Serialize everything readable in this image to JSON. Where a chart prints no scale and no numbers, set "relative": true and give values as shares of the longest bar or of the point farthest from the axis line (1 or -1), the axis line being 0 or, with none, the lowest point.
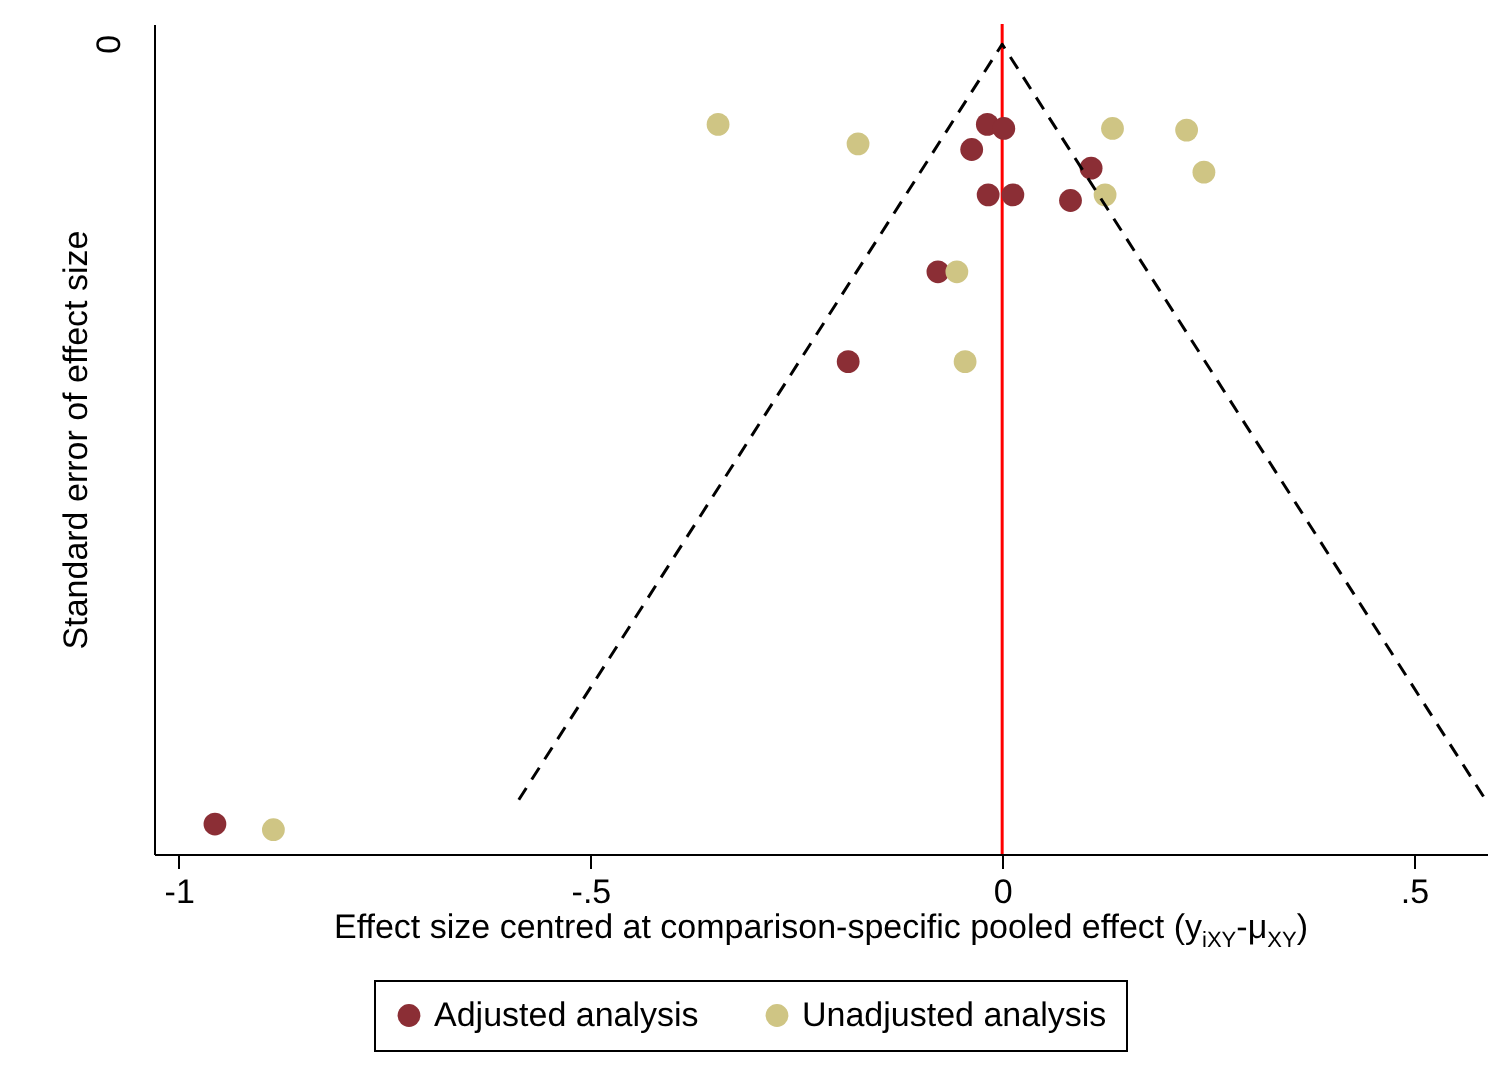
{
  "chart_data": {
    "type": "scatter",
    "relative": true,
    "xlabel": "Effect size centred at comparison-specific pooled effect (y$_{iXY}$-μ$_{XY}$)",
    "ylabel": "Standard error of effect size",
    "annotations": [
      "0"
    ],
    "xlim": [
      -1.03,
      0.59
    ],
    "xticks": [
      -1,
      {
        "value": -0.5,
        "label": "-.5"
      },
      0,
      {
        "value": 0.5,
        "label": ".5"
      }
    ],
    "marker": "circle",
    "legend": "bottom",
    "ref_lines": [
      {
        "axis": "x",
        "value": 0,
        "color": "#ff0000"
      }
    ],
    "series": [
      {
        "name": "Adjusted analysis",
        "color": "#8b2e35",
        "x": [
          -0.018,
          0.002,
          -0.037,
          0.108,
          -0.017,
          0.013,
          0.083,
          -0.078,
          -0.187,
          -0.956
        ],
        "values": [
          0.901,
          0.896,
          0.87,
          0.847,
          0.814,
          0.814,
          0.807,
          0.719,
          0.608,
          0.037
        ]
      },
      {
        "name": "Unadjusted analysis",
        "color": "#cfc584",
        "x": [
          -0.345,
          -0.175,
          0.134,
          0.224,
          0.245,
          0.125,
          -0.055,
          -0.045,
          -0.885
        ],
        "values": [
          0.901,
          0.877,
          0.896,
          0.894,
          0.842,
          0.814,
          0.719,
          0.608,
          0.03
        ]
      },
      {
        "type": "line",
        "color": "#000000",
        "line_style": "dashed",
        "marker": "none",
        "x": [
          -0.587,
          0,
          0.587
        ],
        "values": [
          0.067,
          1,
          0.067
        ]
      }
    ]
  }
}
